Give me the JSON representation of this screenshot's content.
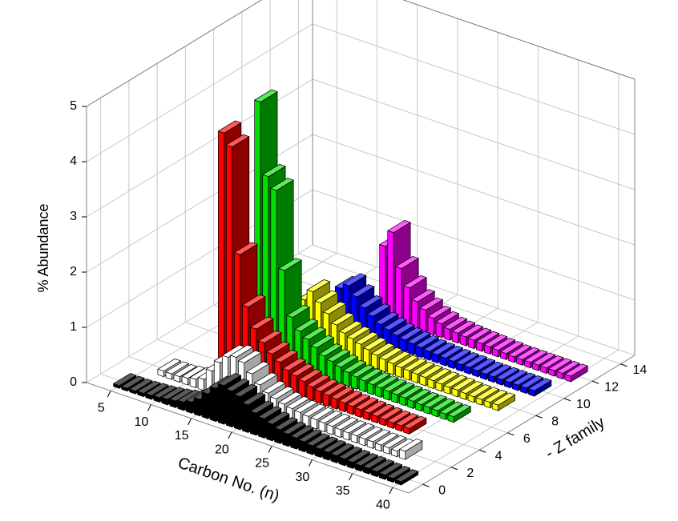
{
  "chart_data": {
    "type": "bar3d",
    "xlabel": "Carbon No. (n)",
    "ylabel": "% Abundance",
    "zlabel": "- Z family",
    "x": [
      4,
      5,
      6,
      7,
      8,
      9,
      10,
      11,
      12,
      13,
      14,
      15,
      16,
      17,
      18,
      19,
      20,
      21,
      22,
      23,
      24,
      25,
      26,
      27,
      28,
      29,
      30,
      31,
      32,
      33,
      34,
      35,
      36,
      37,
      38,
      39,
      40
    ],
    "xlim": [
      2,
      42
    ],
    "xticks": [
      5,
      10,
      15,
      20,
      25,
      30,
      35,
      40
    ],
    "ylim": [
      0,
      5
    ],
    "yticks": [
      0,
      1,
      2,
      3,
      4,
      5
    ],
    "zlim": [
      -1,
      15
    ],
    "zticks": [
      0,
      2,
      4,
      6,
      8,
      10,
      12,
      14
    ],
    "grid": true,
    "series": [
      {
        "z": 0,
        "color": "#000000",
        "values": [
          null,
          0.05,
          0.05,
          0.05,
          0.06,
          0.07,
          0.08,
          0.1,
          0.12,
          0.15,
          0.2,
          0.3,
          0.45,
          0.6,
          0.7,
          0.65,
          0.6,
          0.5,
          0.4,
          0.35,
          0.3,
          0.25,
          0.22,
          0.2,
          0.18,
          0.16,
          0.15,
          0.14,
          0.13,
          0.12,
          0.11,
          0.1,
          0.1,
          0.09,
          0.08,
          0.07,
          0.06
        ]
      },
      {
        "z": 2,
        "color": "#ffffff",
        "values": [
          null,
          null,
          null,
          0.1,
          0.1,
          0.1,
          0.12,
          0.15,
          0.2,
          0.4,
          0.6,
          0.75,
          0.8,
          0.75,
          0.6,
          0.45,
          0.35,
          0.3,
          0.25,
          0.22,
          0.2,
          0.18,
          0.17,
          0.16,
          0.15,
          0.14,
          0.13,
          0.13,
          0.12,
          0.12,
          0.11,
          0.11,
          0.1,
          0.15,
          null,
          null,
          null
        ]
      },
      {
        "z": 4,
        "color": "#ff0000",
        "values": [
          null,
          null,
          null,
          null,
          null,
          null,
          null,
          4.3,
          4.1,
          2.2,
          1.3,
          0.95,
          0.75,
          0.6,
          0.5,
          0.4,
          0.35,
          0.3,
          0.25,
          0.22,
          0.2,
          0.18,
          0.16,
          0.15,
          0.14,
          0.13,
          0.12,
          0.11,
          0.1,
          0.1,
          0.1,
          null,
          null,
          null,
          null,
          null,
          null
        ]
      },
      {
        "z": 6,
        "color": "#00e000",
        "values": [
          null,
          null,
          null,
          null,
          null,
          null,
          null,
          null,
          4.6,
          3.3,
          3.1,
          1.7,
          0.9,
          0.7,
          0.6,
          0.5,
          0.4,
          0.35,
          0.3,
          0.25,
          0.22,
          0.2,
          0.18,
          0.17,
          0.16,
          0.15,
          0.14,
          0.13,
          0.12,
          0.12,
          0.11,
          0.1,
          0.1,
          null,
          null,
          null,
          null
        ]
      },
      {
        "z": 8,
        "color": "#ffff00",
        "values": [
          null,
          null,
          null,
          null,
          null,
          null,
          null,
          null,
          null,
          0.6,
          0.8,
          1.0,
          0.85,
          0.7,
          0.55,
          0.45,
          0.4,
          0.35,
          0.3,
          0.25,
          0.22,
          0.2,
          0.18,
          0.17,
          0.16,
          0.15,
          0.14,
          0.13,
          0.12,
          0.12,
          0.11,
          0.1,
          0.1,
          0.1,
          0.1,
          null,
          null
        ]
      },
      {
        "z": 10,
        "color": "#0000ff",
        "values": [
          null,
          null,
          null,
          null,
          null,
          null,
          null,
          null,
          null,
          null,
          0.5,
          0.75,
          0.85,
          0.7,
          0.55,
          0.45,
          0.35,
          0.3,
          0.25,
          0.22,
          0.2,
          0.18,
          0.16,
          0.15,
          0.14,
          0.13,
          0.12,
          0.12,
          0.11,
          0.1,
          0.1,
          0.1,
          0.1,
          0.1,
          0.1,
          0.1,
          null
        ]
      },
      {
        "z": 12,
        "color": "#ff00ff",
        "values": [
          null,
          null,
          null,
          null,
          null,
          null,
          null,
          null,
          null,
          null,
          null,
          null,
          null,
          1.3,
          1.6,
          1.0,
          0.7,
          0.5,
          0.4,
          0.3,
          0.25,
          0.2,
          0.18,
          0.16,
          0.15,
          0.14,
          0.13,
          0.12,
          0.11,
          0.1,
          0.1,
          0.1,
          0.1,
          0.1,
          0.1,
          0.1,
          0.1
        ]
      }
    ]
  }
}
